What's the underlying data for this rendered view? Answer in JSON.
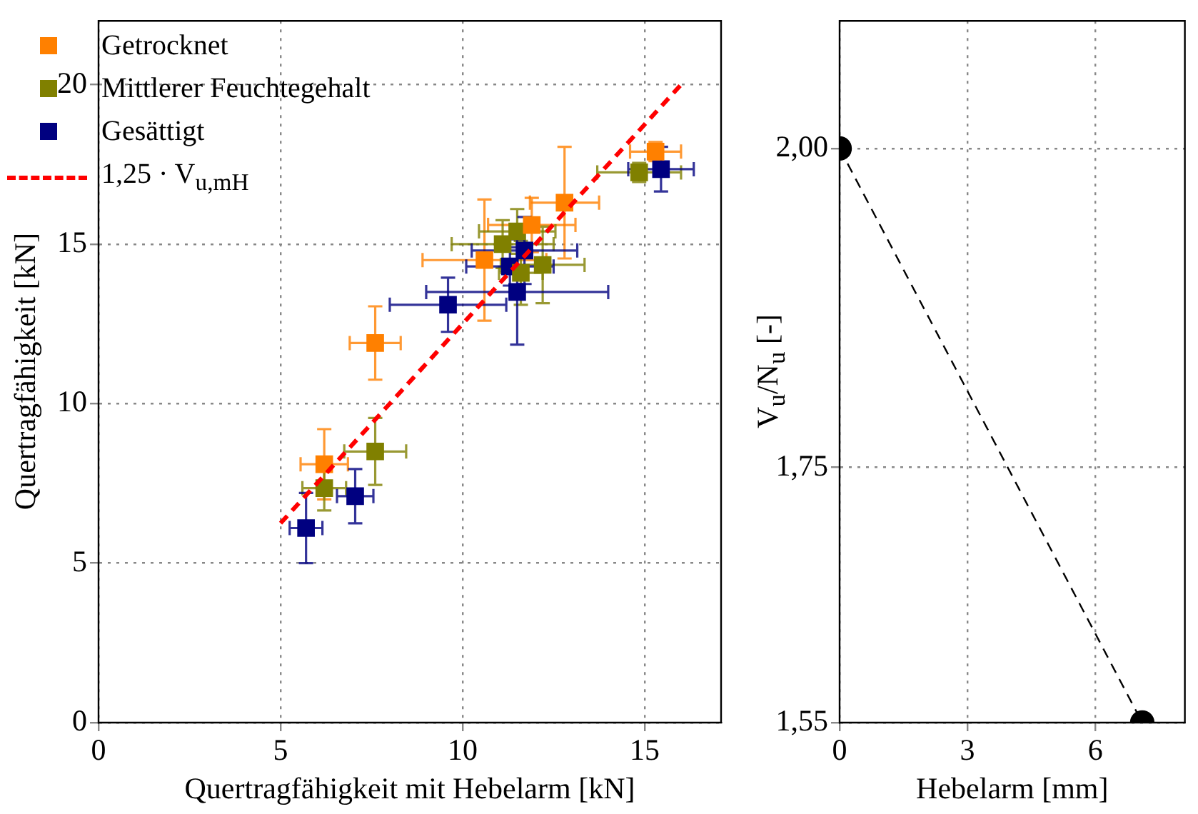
{
  "chart_data": [
    {
      "type": "scatter",
      "xlabel": "Quertragfähigkeit mit Hebelarm [kN]",
      "ylabel": "Quertragfähigkeit [kN]",
      "xlim": [
        0,
        17.1
      ],
      "ylim": [
        0,
        22
      ],
      "xticks": [
        0,
        5,
        10,
        15
      ],
      "yticks": [
        0,
        5,
        10,
        15,
        20
      ],
      "grid": true,
      "legend": "top left",
      "marker": "square",
      "series": [
        {
          "name": "Getrocknet",
          "color": "#ff8000",
          "x": [
            6.2,
            7.6,
            10.6,
            11.9,
            12.8,
            15.3
          ],
          "values": [
            8.1,
            11.9,
            14.5,
            15.6,
            16.3,
            17.9
          ],
          "errors": [
            1.1,
            1.15,
            1.9,
            0.85,
            1.75,
            0.3
          ],
          "xerrors": [
            0.65,
            0.7,
            1.7,
            1.2,
            0.95,
            0.7
          ]
        },
        {
          "name": "Mittlerer Feuchtegehalt",
          "color": "#808000",
          "x": [
            6.2,
            7.6,
            11.1,
            11.5,
            11.6,
            12.2,
            14.85
          ],
          "values": [
            7.35,
            8.5,
            15.0,
            15.4,
            14.1,
            14.35,
            17.25
          ],
          "errors": [
            0.7,
            1.05,
            0.75,
            0.7,
            1.0,
            1.2,
            0.3
          ],
          "xerrors": [
            0.6,
            0.85,
            1.4,
            1.05,
            0.6,
            1.15,
            1.15
          ]
        },
        {
          "name": "Gesättigt",
          "color": "#000080",
          "x": [
            5.7,
            7.05,
            9.6,
            11.5,
            11.3,
            11.7,
            15.45
          ],
          "values": [
            6.1,
            7.1,
            13.1,
            13.5,
            14.3,
            14.8,
            17.35
          ],
          "errors": [
            1.1,
            0.85,
            0.85,
            1.65,
            0.6,
            1.05,
            0.7
          ],
          "xerrors": [
            0.45,
            0.5,
            1.6,
            2.5,
            1.2,
            1.45,
            0.9
          ]
        },
        {
          "name": "1,25 · V$_{u,mH}$",
          "type": "line",
          "color": "#ff0000",
          "line_style": "dashed",
          "marker": "none",
          "x": [
            5,
            16
          ],
          "values": [
            6.25,
            20
          ]
        }
      ]
    },
    {
      "type": "line",
      "xlabel": "Hebelarm [mm]",
      "ylabel": "V$_{u}$/N$_{u}$ [-]",
      "xlim": [
        0,
        8.1
      ],
      "ylim": [
        1.55,
        2.1
      ],
      "xticks": [
        0,
        3,
        6
      ],
      "yticks": [
        {
          "value": 1.55,
          "label": "1,55"
        },
        {
          "value": 1.75,
          "label": "1,75"
        },
        {
          "value": 2.0,
          "label": "2,00"
        }
      ],
      "grid": true,
      "marker": "circle",
      "line_style": "dashed",
      "series": [
        {
          "color": "#000000",
          "x": [
            0,
            7.1
          ],
          "values": [
            2.0,
            1.55
          ]
        }
      ]
    }
  ]
}
